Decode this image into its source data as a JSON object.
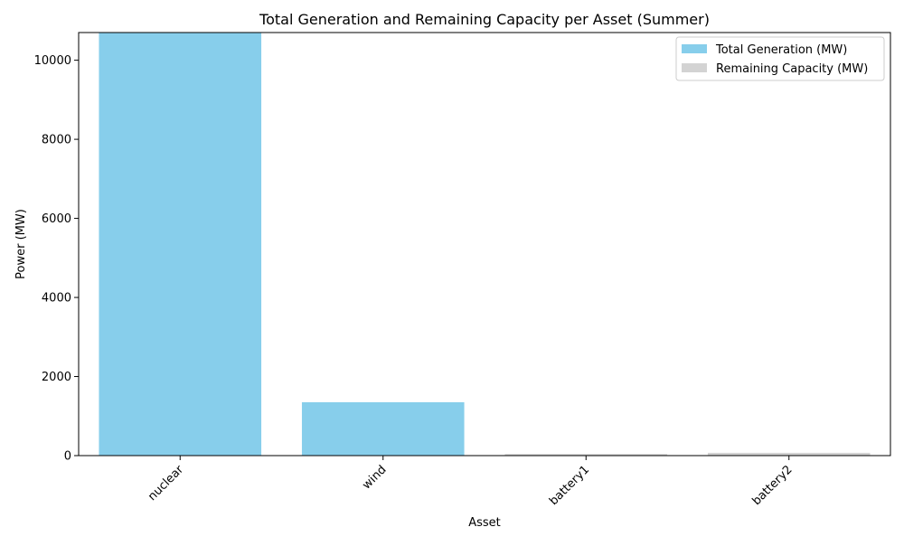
{
  "chart_data": {
    "type": "bar",
    "title": "Total Generation and Remaining Capacity per Asset (Summer)",
    "xlabel": "Asset",
    "ylabel": "Power (MW)",
    "categories": [
      "nuclear",
      "wind",
      "battery1",
      "battery2"
    ],
    "series": [
      {
        "name": "Total Generation (MW)",
        "color": "#87ceeb",
        "values": [
          10700,
          1350,
          0,
          0
        ]
      },
      {
        "name": "Remaining Capacity (MW)",
        "color": "#d3d3d3",
        "values": [
          0,
          0,
          40,
          70
        ]
      }
    ],
    "stacked": true,
    "ylim": [
      0,
      10700
    ],
    "yticks": [
      0,
      2000,
      4000,
      6000,
      8000,
      10000
    ],
    "grid": false,
    "legend_position": "top-right"
  }
}
